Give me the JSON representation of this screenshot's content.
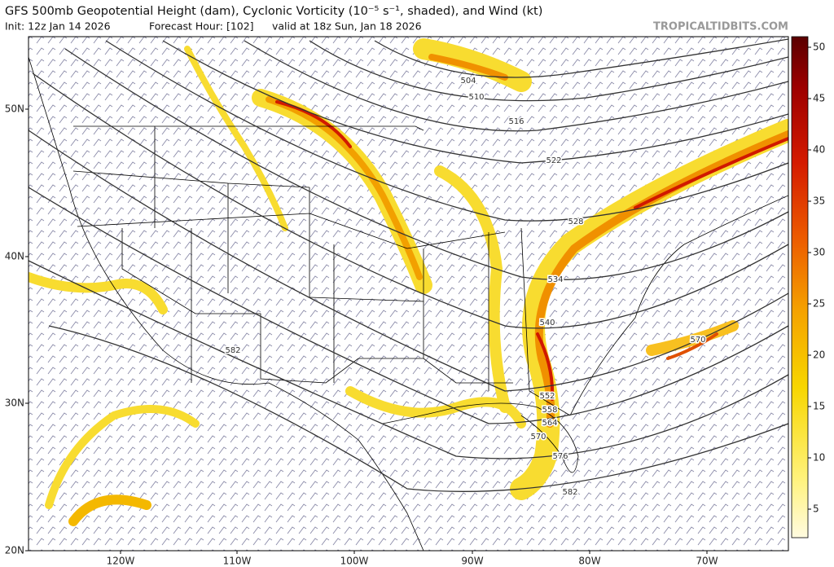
{
  "header": {
    "title": "GFS 500mb Geopotential Height (dam), Cyclonic Vorticity (10⁻⁵ s⁻¹, shaded), and Wind (kt)",
    "init": "Init: 12z Jan 14 2026",
    "forecast_hour": "Forecast Hour: [102]",
    "valid": "valid at 18z Sun, Jan 18 2026",
    "source": "TROPICALTIDBITS.COM"
  },
  "colorbar": {
    "ticks": [
      "50",
      "45",
      "40",
      "35",
      "30",
      "25",
      "20",
      "15",
      "10",
      "5"
    ]
  },
  "map": {
    "latitude_labels": [
      "50N",
      "40N",
      "30N",
      "20N"
    ],
    "longitude_labels": [
      "120W",
      "110W",
      "100W",
      "90W",
      "80W",
      "70W"
    ],
    "contour_labels": [
      "504",
      "510",
      "516",
      "522",
      "528",
      "534",
      "540",
      "552",
      "558",
      "564",
      "570",
      "576",
      "582",
      "582",
      "570"
    ]
  }
}
